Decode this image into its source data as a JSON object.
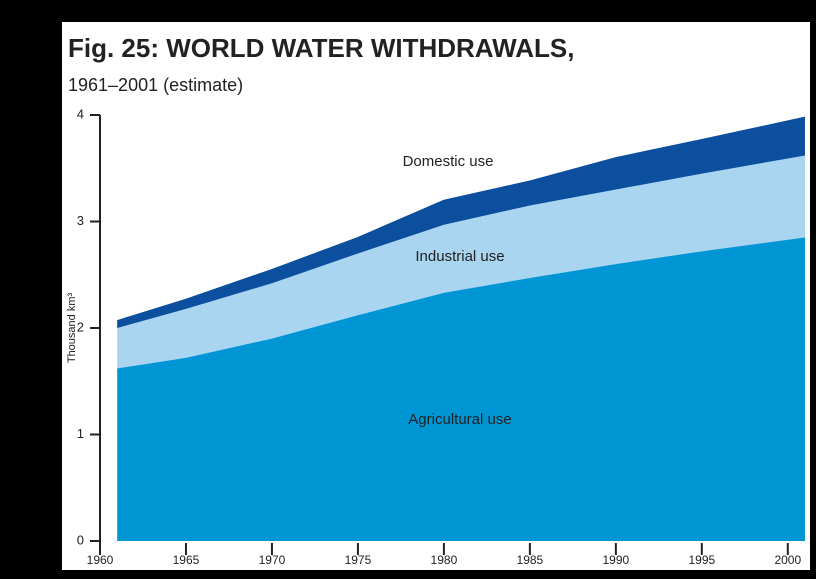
{
  "chart_data": {
    "type": "stacked_area",
    "title": "Fig. 25: WORLD WATER WITHDRAWALS,",
    "subtitle": "1961–2001 (estimate)",
    "y_label": "Thousand km³",
    "x": [
      1961,
      1965,
      1970,
      1975,
      1980,
      1985,
      1990,
      1995,
      2001
    ],
    "series": [
      {
        "name": "Agricultural use",
        "color": "#0096d6",
        "values": [
          1.62,
          1.72,
          1.9,
          2.12,
          2.33,
          2.47,
          2.6,
          2.72,
          2.85
        ]
      },
      {
        "name": "Industrial use",
        "color": "#a9d5f1",
        "values": [
          0.38,
          0.46,
          0.52,
          0.58,
          0.64,
          0.68,
          0.7,
          0.73,
          0.77
        ]
      },
      {
        "name": "Domestic use",
        "color": "#0b4f9e",
        "values": [
          0.07,
          0.09,
          0.13,
          0.15,
          0.23,
          0.23,
          0.3,
          0.32,
          0.36
        ]
      }
    ],
    "xlim": [
      1960,
      2001
    ],
    "xticks": [
      1960,
      1965,
      1970,
      1975,
      1980,
      1985,
      1990,
      1995,
      2000
    ],
    "ylim": [
      0,
      4
    ],
    "yticks": [
      0,
      1,
      2,
      3,
      4
    ]
  }
}
